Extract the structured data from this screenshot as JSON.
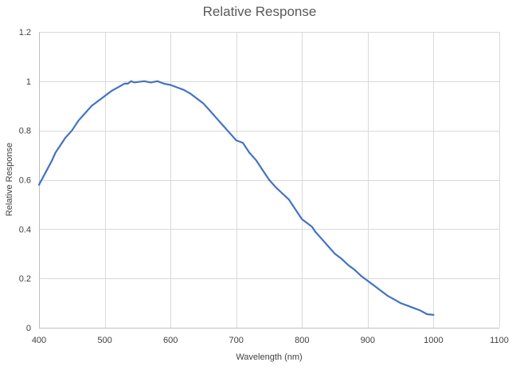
{
  "chart_data": {
    "type": "line",
    "title": "Relative Response",
    "xlabel": "Wavelength (nm)",
    "ylabel": "Relative Response",
    "xlim": [
      400,
      1100
    ],
    "ylim": [
      0,
      1.2
    ],
    "x_ticks": [
      400,
      500,
      600,
      700,
      800,
      900,
      1000,
      1100
    ],
    "y_ticks": [
      0,
      0.2,
      0.4,
      0.6,
      0.8,
      1,
      1.2
    ],
    "x_tick_labels": [
      "400",
      "500",
      "600",
      "700",
      "800",
      "900",
      "1000",
      "1100"
    ],
    "y_tick_labels": [
      "0",
      "0.2",
      "0.4",
      "0.6",
      "0.8",
      "1",
      "1.2"
    ],
    "grid": true,
    "legend": "none",
    "series": [
      {
        "color": "#4472C4",
        "x": [
          400,
          410,
          420,
          425,
          430,
          440,
          450,
          460,
          470,
          480,
          490,
          500,
          510,
          520,
          530,
          535,
          540,
          545,
          550,
          560,
          570,
          580,
          590,
          600,
          610,
          620,
          630,
          640,
          650,
          660,
          670,
          680,
          690,
          700,
          710,
          715,
          720,
          730,
          735,
          740,
          750,
          760,
          770,
          780,
          790,
          800,
          810,
          815,
          820,
          830,
          840,
          850,
          860,
          870,
          880,
          890,
          900,
          910,
          920,
          930,
          940,
          950,
          960,
          970,
          980,
          990,
          1000
        ],
        "y": [
          0.58,
          0.63,
          0.68,
          0.71,
          0.73,
          0.77,
          0.8,
          0.84,
          0.87,
          0.9,
          0.92,
          0.94,
          0.96,
          0.975,
          0.99,
          0.99,
          1.0,
          0.995,
          0.997,
          1.0,
          0.995,
          1.0,
          0.99,
          0.985,
          0.975,
          0.965,
          0.95,
          0.93,
          0.91,
          0.88,
          0.85,
          0.82,
          0.79,
          0.76,
          0.75,
          0.73,
          0.71,
          0.68,
          0.66,
          0.64,
          0.6,
          0.57,
          0.545,
          0.52,
          0.48,
          0.44,
          0.42,
          0.41,
          0.39,
          0.36,
          0.33,
          0.3,
          0.28,
          0.255,
          0.235,
          0.21,
          0.19,
          0.17,
          0.15,
          0.13,
          0.115,
          0.1,
          0.09,
          0.08,
          0.07,
          0.055,
          0.052
        ]
      }
    ]
  }
}
